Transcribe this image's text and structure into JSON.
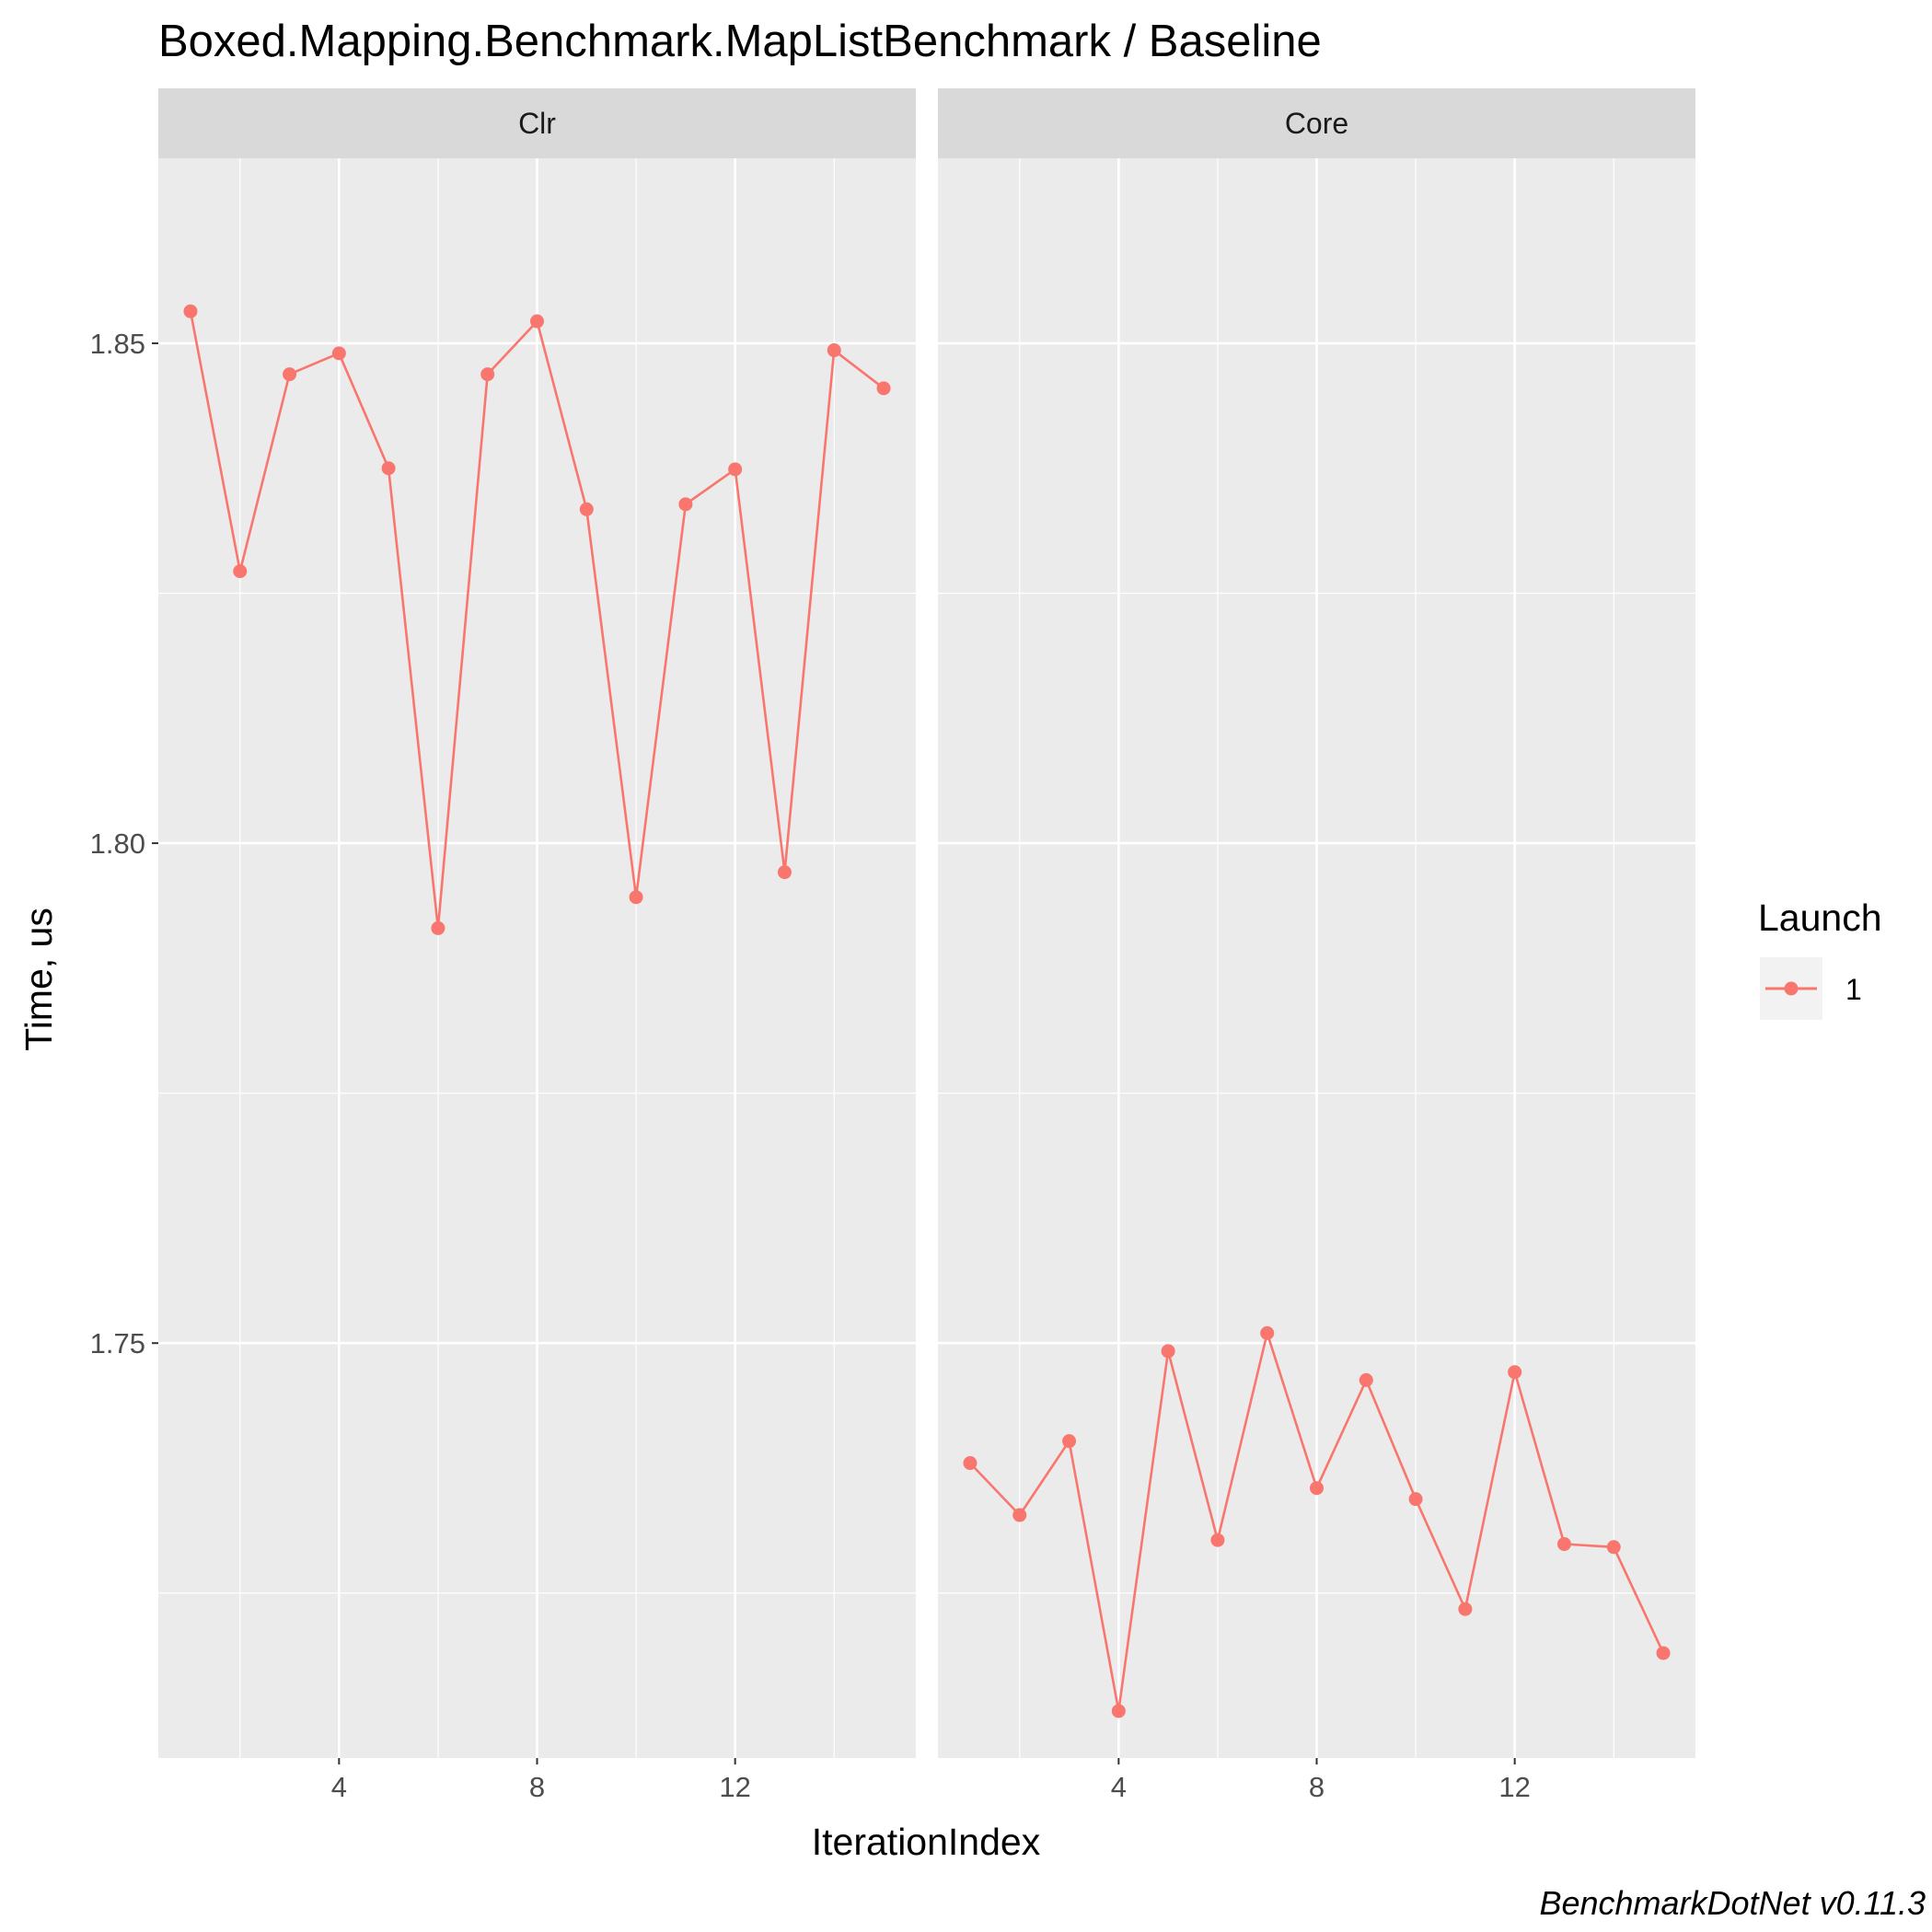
{
  "chart_data": {
    "type": "line",
    "title": "Boxed.Mapping.Benchmark.MapListBenchmark / Baseline",
    "xlabel": "IterationIndex",
    "ylabel": "Time, us",
    "xlim": [
      0.35,
      15.65
    ],
    "ylim": [
      1.7085,
      1.8685
    ],
    "x_ticks": [
      4,
      8,
      12
    ],
    "y_ticks": [
      1.75,
      1.8,
      1.85
    ],
    "y_tick_labels": [
      "1.75",
      "1.80",
      "1.85"
    ],
    "grid": true,
    "legend": {
      "title": "Launch",
      "entries": [
        "1"
      ],
      "position": "right"
    },
    "series_color": "#F8766D",
    "x": [
      1,
      2,
      3,
      4,
      5,
      6,
      7,
      8,
      9,
      10,
      11,
      12,
      13,
      14,
      15
    ],
    "facets": [
      {
        "label": "Clr",
        "series": [
          {
            "name": "1",
            "values": [
              1.8532,
              1.8272,
              1.8469,
              1.849,
              1.8375,
              1.7915,
              1.8469,
              1.8522,
              1.8334,
              1.7946,
              1.8339,
              1.8374,
              1.7971,
              1.8493,
              1.8455
            ]
          }
        ]
      },
      {
        "label": "Core",
        "series": [
          {
            "name": "1",
            "values": [
              1.738,
              1.7328,
              1.7402,
              1.7132,
              1.7492,
              1.7303,
              1.751,
              1.7355,
              1.7463,
              1.7344,
              1.7234,
              1.7471,
              1.7299,
              1.7296,
              1.719
            ]
          }
        ]
      }
    ],
    "caption": "BenchmarkDotNet v0.11.3"
  }
}
